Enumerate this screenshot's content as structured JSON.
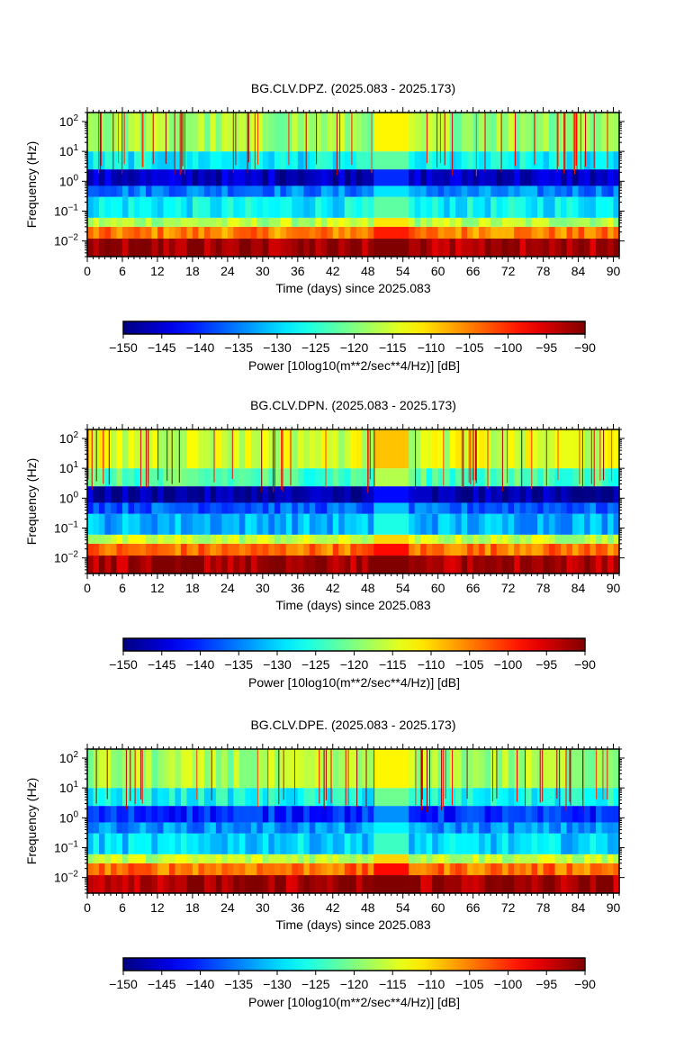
{
  "chart_data": [
    {
      "type": "heatmap",
      "title": "BG.CLV.DPZ. (2025.083 - 2025.173)",
      "xlabel": "Time (days) since 2025.083",
      "ylabel": "Frequency (Hz)",
      "x_ticks": [
        "0",
        "6",
        "12",
        "18",
        "24",
        "30",
        "36",
        "42",
        "48",
        "54",
        "60",
        "66",
        "72",
        "78",
        "84",
        "90"
      ],
      "xlim": [
        0,
        91
      ],
      "y_scale": "log",
      "y_ticks": [
        "10^2",
        "10^1",
        "10^0",
        "10^-1",
        "10^-2"
      ],
      "ylim": [
        0.003,
        200
      ],
      "colorbar": {
        "label": "Power [10log10(m**2/sec**4/Hz)] [dB]",
        "ticks": [
          "−150",
          "−145",
          "−140",
          "−135",
          "−130",
          "−125",
          "−120",
          "−115",
          "−110",
          "−105",
          "−100",
          "−95",
          "−90"
        ],
        "range": [
          -150,
          -90
        ],
        "colormap": "jet"
      },
      "bands": [
        {
          "freq_hz": [
            0.003,
            0.012
          ],
          "power_db": -92
        },
        {
          "freq_hz": [
            0.012,
            0.03
          ],
          "power_db": -105
        },
        {
          "freq_hz": [
            0.03,
            0.06
          ],
          "power_db": -117
        },
        {
          "freq_hz": [
            0.06,
            0.3
          ],
          "power_db": -128
        },
        {
          "freq_hz": [
            0.3,
            0.7
          ],
          "power_db": -135
        },
        {
          "freq_hz": [
            0.7,
            2.5
          ],
          "power_db": -146
        },
        {
          "freq_hz": [
            2.5,
            10
          ],
          "power_db": -128
        },
        {
          "freq_hz": [
            10,
            200
          ],
          "power_db": -118
        }
      ],
      "data_gap_days": [
        49.5,
        54.5
      ]
    },
    {
      "type": "heatmap",
      "title": "BG.CLV.DPN. (2025.083 - 2025.173)",
      "xlabel": "Time (days) since 2025.083",
      "ylabel": "Frequency (Hz)",
      "x_ticks": [
        "0",
        "6",
        "12",
        "18",
        "24",
        "30",
        "36",
        "42",
        "48",
        "54",
        "60",
        "66",
        "72",
        "78",
        "84",
        "90"
      ],
      "xlim": [
        0,
        91
      ],
      "y_scale": "log",
      "y_ticks": [
        "10^2",
        "10^1",
        "10^0",
        "10^-1",
        "10^-2"
      ],
      "ylim": [
        0.003,
        200
      ],
      "colorbar": {
        "label": "Power [10log10(m**2/sec**4/Hz)] [dB]",
        "ticks": [
          "−150",
          "−145",
          "−140",
          "−135",
          "−130",
          "−125",
          "−120",
          "−115",
          "−110",
          "−105",
          "−100",
          "−95",
          "−90"
        ],
        "range": [
          -150,
          -90
        ],
        "colormap": "jet"
      },
      "bands": [
        {
          "freq_hz": [
            0.003,
            0.012
          ],
          "power_db": -92
        },
        {
          "freq_hz": [
            0.012,
            0.03
          ],
          "power_db": -104
        },
        {
          "freq_hz": [
            0.03,
            0.06
          ],
          "power_db": -116
        },
        {
          "freq_hz": [
            0.06,
            0.3
          ],
          "power_db": -132
        },
        {
          "freq_hz": [
            0.3,
            0.7
          ],
          "power_db": -137
        },
        {
          "freq_hz": [
            0.7,
            2.5
          ],
          "power_db": -148
        },
        {
          "freq_hz": [
            2.5,
            10
          ],
          "power_db": -123
        },
        {
          "freq_hz": [
            10,
            200
          ],
          "power_db": -115
        }
      ],
      "data_gap_days": [
        49.5,
        54.5
      ]
    },
    {
      "type": "heatmap",
      "title": "BG.CLV.DPE. (2025.083 - 2025.173)",
      "xlabel": "Time (days) since 2025.083",
      "ylabel": "Frequency (Hz)",
      "x_ticks": [
        "0",
        "6",
        "12",
        "18",
        "24",
        "30",
        "36",
        "42",
        "48",
        "54",
        "60",
        "66",
        "72",
        "78",
        "84",
        "90"
      ],
      "xlim": [
        0,
        91
      ],
      "y_scale": "log",
      "y_ticks": [
        "10^2",
        "10^1",
        "10^0",
        "10^-1",
        "10^-2"
      ],
      "ylim": [
        0.003,
        200
      ],
      "colorbar": {
        "label": "Power [10log10(m**2/sec**4/Hz)] [dB]",
        "ticks": [
          "−150",
          "−145",
          "−140",
          "−135",
          "−130",
          "−125",
          "−120",
          "−115",
          "−110",
          "−105",
          "−100",
          "−95",
          "−90"
        ],
        "range": [
          -150,
          -90
        ],
        "colormap": "jet"
      },
      "bands": [
        {
          "freq_hz": [
            0.003,
            0.012
          ],
          "power_db": -92
        },
        {
          "freq_hz": [
            0.012,
            0.03
          ],
          "power_db": -104
        },
        {
          "freq_hz": [
            0.03,
            0.06
          ],
          "power_db": -116
        },
        {
          "freq_hz": [
            0.06,
            0.3
          ],
          "power_db": -130
        },
        {
          "freq_hz": [
            0.3,
            0.7
          ],
          "power_db": -134
        },
        {
          "freq_hz": [
            0.7,
            2.5
          ],
          "power_db": -140
        },
        {
          "freq_hz": [
            2.5,
            10
          ],
          "power_db": -127
        },
        {
          "freq_hz": [
            10,
            200
          ],
          "power_db": -118
        }
      ],
      "data_gap_days": [
        49.5,
        54.5
      ]
    }
  ]
}
